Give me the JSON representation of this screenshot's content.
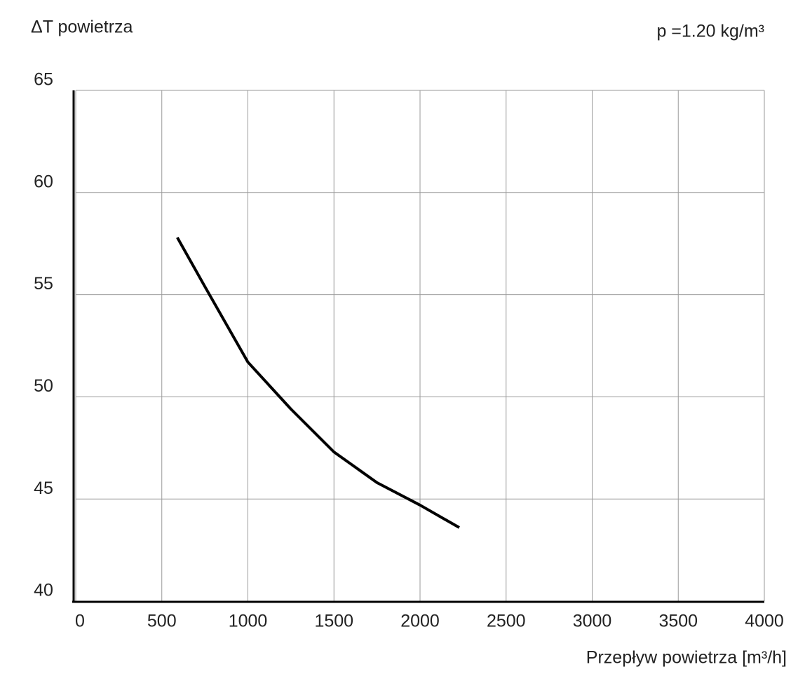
{
  "chart_data": {
    "type": "line",
    "y_label": "ΔT powietrza",
    "annotation": "p =1.20 kg/m³",
    "x_label": "Przepływ powietrza [m³/h]",
    "x": [
      590,
      750,
      1000,
      1250,
      1500,
      1750,
      2000,
      2228
    ],
    "values": [
      57.8,
      55.4,
      51.7,
      49.4,
      47.3,
      45.8,
      44.7,
      43.6
    ],
    "color": "#000000",
    "xlim": [
      0,
      4000
    ],
    "xticks": [
      0,
      500,
      1000,
      1500,
      2000,
      2500,
      3000,
      3500,
      4000
    ],
    "ylim": [
      40,
      65
    ],
    "yticks": [
      40,
      45,
      50,
      55,
      60,
      65
    ],
    "grid": true
  }
}
